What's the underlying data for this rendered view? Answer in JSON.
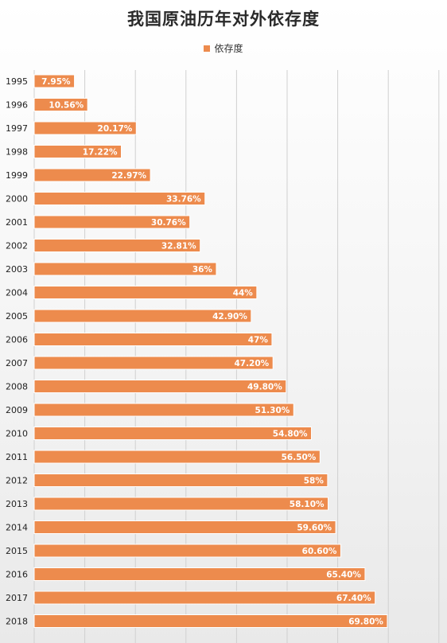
{
  "colors": {
    "bar": "#ed8b4d",
    "bar_border": "#ffffff",
    "grid": "#d0d0d0",
    "label": "#ffffff"
  },
  "chart_data": {
    "type": "bar",
    "orientation": "horizontal",
    "title": "我国原油历年对外依存度",
    "legend_position": "top",
    "grid": true,
    "xlim": [
      0,
      80
    ],
    "categories": [
      "1995",
      "1996",
      "1997",
      "1998",
      "1999",
      "2000",
      "2001",
      "2002",
      "2003",
      "2004",
      "2005",
      "2006",
      "2007",
      "2008",
      "2009",
      "2010",
      "2011",
      "2012",
      "2013",
      "2014",
      "2015",
      "2016",
      "2017",
      "2018"
    ],
    "series": [
      {
        "name": "依存度",
        "values": [
          7.95,
          10.56,
          20.17,
          17.22,
          22.97,
          33.76,
          30.76,
          32.81,
          36,
          44,
          42.9,
          47,
          47.2,
          49.8,
          51.3,
          54.8,
          56.5,
          58,
          58.1,
          59.6,
          60.6,
          65.4,
          67.4,
          69.8
        ],
        "labels": [
          "7.95%",
          "10.56%",
          "20.17%",
          "17.22%",
          "22.97%",
          "33.76%",
          "30.76%",
          "32.81%",
          "36%",
          "44%",
          "42.90%",
          "47%",
          "47.20%",
          "49.80%",
          "51.30%",
          "54.80%",
          "56.50%",
          "58%",
          "58.10%",
          "59.60%",
          "60.60%",
          "65.40%",
          "67.40%",
          "69.80%"
        ]
      }
    ]
  }
}
